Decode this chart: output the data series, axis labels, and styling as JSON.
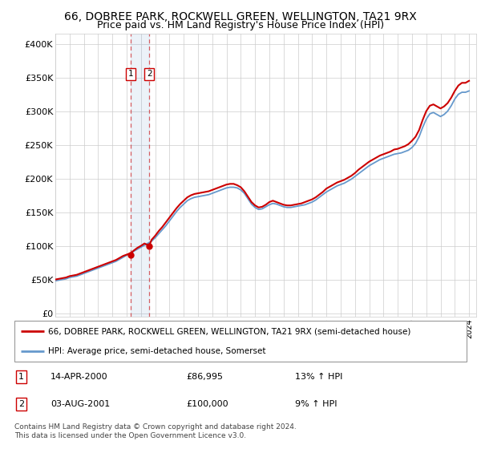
{
  "title": "66, DOBREE PARK, ROCKWELL GREEN, WELLINGTON, TA21 9RX",
  "subtitle": "Price paid vs. HM Land Registry's House Price Index (HPI)",
  "legend_line1": "66, DOBREE PARK, ROCKWELL GREEN, WELLINGTON, TA21 9RX (semi-detached house)",
  "legend_line2": "HPI: Average price, semi-detached house, Somerset",
  "footnote": "Contains HM Land Registry data © Crown copyright and database right 2024.\nThis data is licensed under the Open Government Licence v3.0.",
  "sale1_date": "14-APR-2000",
  "sale1_price": 86995,
  "sale1_price_str": "£86,995",
  "sale1_hpi": "13% ↑ HPI",
  "sale2_date": "03-AUG-2001",
  "sale2_price": 100000,
  "sale2_price_str": "£100,000",
  "sale2_hpi": "9% ↑ HPI",
  "property_color": "#cc0000",
  "hpi_color": "#6699cc",
  "sale_marker_color": "#cc0000",
  "grid_color": "#cccccc",
  "yticks": [
    0,
    50000,
    100000,
    150000,
    200000,
    250000,
    300000,
    350000,
    400000
  ],
  "ytick_labels": [
    "£0",
    "£50K",
    "£100K",
    "£150K",
    "£200K",
    "£250K",
    "£300K",
    "£350K",
    "£400K"
  ],
  "ylim_min": -5000,
  "ylim_max": 415000,
  "title_fontsize": 10,
  "subtitle_fontsize": 9,
  "hpi_years": [
    1995,
    1995.25,
    1995.5,
    1995.75,
    1996,
    1996.25,
    1996.5,
    1996.75,
    1997,
    1997.25,
    1997.5,
    1997.75,
    1998,
    1998.25,
    1998.5,
    1998.75,
    1999,
    1999.25,
    1999.5,
    1999.75,
    2000,
    2000.25,
    2000.5,
    2000.75,
    2001,
    2001.25,
    2001.5,
    2001.75,
    2002,
    2002.25,
    2002.5,
    2002.75,
    2003,
    2003.25,
    2003.5,
    2003.75,
    2004,
    2004.25,
    2004.5,
    2004.75,
    2005,
    2005.25,
    2005.5,
    2005.75,
    2006,
    2006.25,
    2006.5,
    2006.75,
    2007,
    2007.25,
    2007.5,
    2007.75,
    2008,
    2008.25,
    2008.5,
    2008.75,
    2009,
    2009.25,
    2009.5,
    2009.75,
    2010,
    2010.25,
    2010.5,
    2010.75,
    2011,
    2011.25,
    2011.5,
    2011.75,
    2012,
    2012.25,
    2012.5,
    2012.75,
    2013,
    2013.25,
    2013.5,
    2013.75,
    2014,
    2014.25,
    2014.5,
    2014.75,
    2015,
    2015.25,
    2015.5,
    2015.75,
    2016,
    2016.25,
    2016.5,
    2016.75,
    2017,
    2017.25,
    2017.5,
    2017.75,
    2018,
    2018.25,
    2018.5,
    2018.75,
    2019,
    2019.25,
    2019.5,
    2019.75,
    2020,
    2020.25,
    2020.5,
    2020.75,
    2021,
    2021.25,
    2021.5,
    2021.75,
    2022,
    2022.25,
    2022.5,
    2022.75,
    2023,
    2023.25,
    2023.5,
    2023.75,
    2024
  ],
  "hpi_values": [
    48000,
    49000,
    50000,
    51000,
    53000,
    54000,
    55000,
    57000,
    59000,
    61000,
    63000,
    65000,
    67000,
    69000,
    71000,
    73000,
    75000,
    77000,
    80000,
    83000,
    86000,
    89000,
    92000,
    95000,
    98000,
    101000,
    104000,
    107000,
    112000,
    118000,
    124000,
    130000,
    137000,
    144000,
    151000,
    157000,
    162000,
    167000,
    170000,
    172000,
    173000,
    174000,
    175000,
    176000,
    178000,
    180000,
    182000,
    184000,
    186000,
    187000,
    187000,
    186000,
    183000,
    178000,
    170000,
    162000,
    157000,
    154000,
    155000,
    158000,
    161000,
    163000,
    162000,
    160000,
    158000,
    157000,
    157000,
    158000,
    159000,
    160000,
    161000,
    163000,
    165000,
    168000,
    172000,
    176000,
    180000,
    183000,
    186000,
    189000,
    191000,
    193000,
    196000,
    199000,
    203000,
    207000,
    211000,
    215000,
    219000,
    222000,
    225000,
    228000,
    230000,
    232000,
    234000,
    236000,
    237000,
    238000,
    240000,
    242000,
    246000,
    252000,
    262000,
    276000,
    288000,
    296000,
    298000,
    295000,
    292000,
    295000,
    300000,
    308000,
    318000,
    325000,
    328000,
    328000,
    330000
  ],
  "property_years": [
    1995.0,
    1995.25,
    1995.5,
    1995.75,
    1996.0,
    1996.25,
    1996.5,
    1996.75,
    1997.0,
    1997.25,
    1997.5,
    1997.75,
    1998.0,
    1998.25,
    1998.5,
    1998.75,
    1999.0,
    1999.25,
    1999.5,
    1999.75,
    2000.0,
    2000.28,
    2000.5,
    2000.75,
    2001.0,
    2001.25,
    2001.58,
    2001.75,
    2002.0,
    2002.25,
    2002.5,
    2002.75,
    2003.0,
    2003.25,
    2003.5,
    2003.75,
    2004.0,
    2004.25,
    2004.5,
    2004.75,
    2005.0,
    2005.25,
    2005.5,
    2005.75,
    2006.0,
    2006.25,
    2006.5,
    2006.75,
    2007.0,
    2007.25,
    2007.5,
    2007.75,
    2008.0,
    2008.25,
    2008.5,
    2008.75,
    2009.0,
    2009.25,
    2009.5,
    2009.75,
    2010.0,
    2010.25,
    2010.5,
    2010.75,
    2011.0,
    2011.25,
    2011.5,
    2011.75,
    2012.0,
    2012.25,
    2012.5,
    2012.75,
    2013.0,
    2013.25,
    2013.5,
    2013.75,
    2014.0,
    2014.25,
    2014.5,
    2014.75,
    2015.0,
    2015.25,
    2015.5,
    2015.75,
    2016.0,
    2016.25,
    2016.5,
    2016.75,
    2017.0,
    2017.25,
    2017.5,
    2017.75,
    2018.0,
    2018.25,
    2018.5,
    2018.75,
    2019.0,
    2019.25,
    2019.5,
    2019.75,
    2020.0,
    2020.25,
    2020.5,
    2020.75,
    2021.0,
    2021.25,
    2021.5,
    2021.75,
    2022.0,
    2022.25,
    2022.5,
    2022.75,
    2023.0,
    2023.25,
    2023.5,
    2023.75,
    2024.0
  ],
  "property_values": [
    50000,
    51000,
    52000,
    53000,
    55000,
    56000,
    57000,
    59000,
    61000,
    63000,
    65000,
    67000,
    69000,
    71000,
    73000,
    75000,
    77000,
    79000,
    82000,
    85000,
    86995,
    89000,
    93000,
    97000,
    100000,
    103500,
    100000,
    109000,
    115000,
    122000,
    128000,
    135000,
    142000,
    149000,
    156000,
    162000,
    167000,
    172000,
    175000,
    177000,
    178000,
    179000,
    180000,
    181000,
    183000,
    185000,
    187000,
    189000,
    191000,
    192000,
    192000,
    190000,
    187000,
    181000,
    173000,
    165000,
    160000,
    157000,
    158000,
    161000,
    165000,
    167000,
    165000,
    163000,
    161000,
    160000,
    160000,
    161000,
    162000,
    163000,
    165000,
    167000,
    169000,
    172000,
    176000,
    180000,
    185000,
    188000,
    191000,
    194000,
    196000,
    198000,
    201000,
    204000,
    208000,
    213000,
    217000,
    221000,
    225000,
    228000,
    231000,
    234000,
    236000,
    238000,
    240000,
    243000,
    244000,
    246000,
    248000,
    251000,
    256000,
    262000,
    272000,
    287000,
    300000,
    308000,
    310000,
    307000,
    304000,
    307000,
    312000,
    320000,
    330000,
    338000,
    342000,
    342000,
    345000
  ],
  "sale1_year": 2000.28,
  "sale2_year": 2001.58,
  "xlim_min": 1995,
  "xlim_max": 2024.5
}
